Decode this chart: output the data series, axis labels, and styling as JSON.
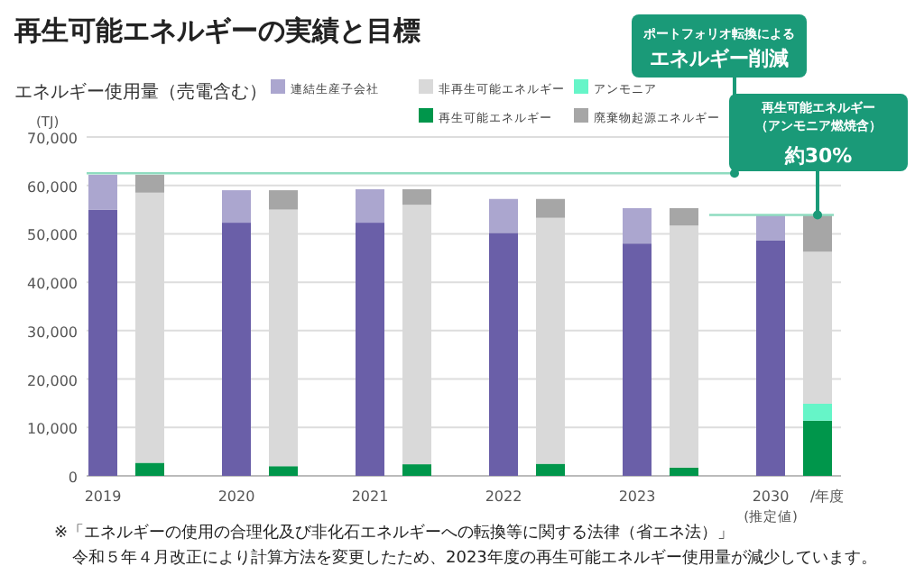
{
  "chart_data": {
    "type": "bar",
    "stacked": true,
    "title": "再生可能エネルギーの実績と目標",
    "ylabel": "エネルギー使用量（売電含む）",
    "xlabel": "/年度",
    "categories": [
      "2019",
      null,
      "2020",
      null,
      "2021",
      null,
      "2022",
      null,
      "2023",
      null,
      "2030",
      null
    ],
    "series": [
      {
        "color": "#6a5fa8",
        "values": [
          55000,
          null,
          52300,
          null,
          52300,
          null,
          50200,
          null,
          48000,
          null,
          48600,
          null
        ]
      },
      {
        "name": "連結生産子会社",
        "color": "#aba6cf",
        "values": [
          7200,
          null,
          6700,
          null,
          6900,
          null,
          7000,
          null,
          7300,
          null,
          5200,
          null
        ]
      },
      {
        "name": "再生可能エネルギー",
        "color": "#00964b",
        "values": [
          null,
          2700,
          null,
          2000,
          null,
          2400,
          null,
          2500,
          null,
          1700,
          null,
          11400
        ]
      },
      {
        "name": "アンモニア",
        "color": "#66f5c8",
        "values": [
          null,
          null,
          null,
          null,
          null,
          null,
          null,
          null,
          null,
          null,
          null,
          3500
        ]
      },
      {
        "name": "非再生可能エネルギー",
        "color": "#d9d9d9",
        "values": [
          null,
          55800,
          null,
          53000,
          null,
          53600,
          null,
          50800,
          null,
          50000,
          null,
          31400
        ]
      },
      {
        "name": "廃棄物起源エネルギー",
        "color": "#a6a6a6",
        "values": [
          null,
          3700,
          null,
          4000,
          null,
          3200,
          null,
          3900,
          null,
          3600,
          null,
          7500
        ]
      }
    ],
    "ylim": [
      0,
      70000
    ],
    "yticks": [
      {
        "value": 0,
        "label": "0"
      },
      {
        "value": 10000,
        "label": "10,000"
      },
      {
        "value": 20000,
        "label": "20,000"
      },
      {
        "value": 30000,
        "label": "30,000"
      },
      {
        "value": 40000,
        "label": "40,000"
      },
      {
        "value": 50000,
        "label": "50,000"
      },
      {
        "value": 60000,
        "label": "60,000"
      },
      {
        "value": 70000,
        "label": "70,000"
      }
    ],
    "grid": "y",
    "legend": "top",
    "ref_lines": [
      {
        "axis": "y",
        "value": 62500,
        "label": "ポートフォリオ転換による**エネルギー削減**",
        "color": "#8fdcc0"
      },
      {
        "axis": "y",
        "value": 53900,
        "label": "再生可能エネルギー（アンモニア燃焼含）**約30%**",
        "color": "#8fdcc0"
      }
    ],
    "annotations": [
      "(TJ)",
      "(推定値)",
      "※「エネルギーの使用の合理化及び非化石エネルギーへの転換等に関する法律（省エネ法）」",
      "令和５年４月改正により計算方法を変更したため、2023年度の再生可能エネルギー使用量が減少しています。"
    ]
  }
}
